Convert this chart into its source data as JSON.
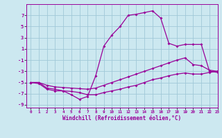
{
  "xlabel": "Windchill (Refroidissement éolien,°C)",
  "xlim": [
    -0.5,
    23
  ],
  "ylim": [
    -9.5,
    9
  ],
  "yticks": [
    -9,
    -7,
    -5,
    -3,
    -1,
    1,
    3,
    5,
    7
  ],
  "xticks": [
    0,
    1,
    2,
    3,
    4,
    5,
    6,
    7,
    8,
    9,
    10,
    11,
    12,
    13,
    14,
    15,
    16,
    17,
    18,
    19,
    20,
    21,
    22,
    23
  ],
  "bg_color": "#cce8f0",
  "grid_color": "#a0c8d8",
  "line_color": "#990099",
  "line1_x": [
    0,
    1,
    2,
    3,
    4,
    5,
    6,
    7,
    8,
    9,
    10,
    11,
    12,
    13,
    14,
    15,
    16,
    17,
    18,
    19,
    20,
    21,
    22,
    23
  ],
  "line1_y": [
    -5,
    -5,
    -6,
    -6.2,
    -6.5,
    -7.2,
    -8,
    -7.5,
    -3.8,
    1.5,
    3.5,
    5,
    7,
    7.2,
    7.5,
    7.8,
    6.5,
    2,
    1.5,
    1.8,
    1.8,
    1.8,
    -3,
    -3.2
  ],
  "line2_x": [
    0,
    1,
    2,
    3,
    4,
    5,
    6,
    7,
    8,
    9,
    10,
    11,
    12,
    13,
    14,
    15,
    16,
    17,
    18,
    19,
    20,
    21,
    22,
    23
  ],
  "line2_y": [
    -5,
    -5,
    -5.5,
    -5.8,
    -5.9,
    -6.0,
    -6.1,
    -6.2,
    -6.0,
    -5.5,
    -5.0,
    -4.5,
    -4.0,
    -3.5,
    -3.0,
    -2.5,
    -2.0,
    -1.5,
    -1.0,
    -0.6,
    -1.8,
    -2.0,
    -2.8,
    -3.0
  ],
  "line3_x": [
    0,
    1,
    2,
    3,
    4,
    5,
    6,
    7,
    8,
    9,
    10,
    11,
    12,
    13,
    14,
    15,
    16,
    17,
    18,
    19,
    20,
    21,
    22,
    23
  ],
  "line3_y": [
    -5,
    -5.2,
    -6.2,
    -6.5,
    -6.5,
    -6.6,
    -6.8,
    -7.2,
    -7.2,
    -6.8,
    -6.5,
    -6.2,
    -5.8,
    -5.5,
    -5.0,
    -4.5,
    -4.2,
    -3.8,
    -3.5,
    -3.3,
    -3.5,
    -3.5,
    -3.2,
    -3.0
  ]
}
